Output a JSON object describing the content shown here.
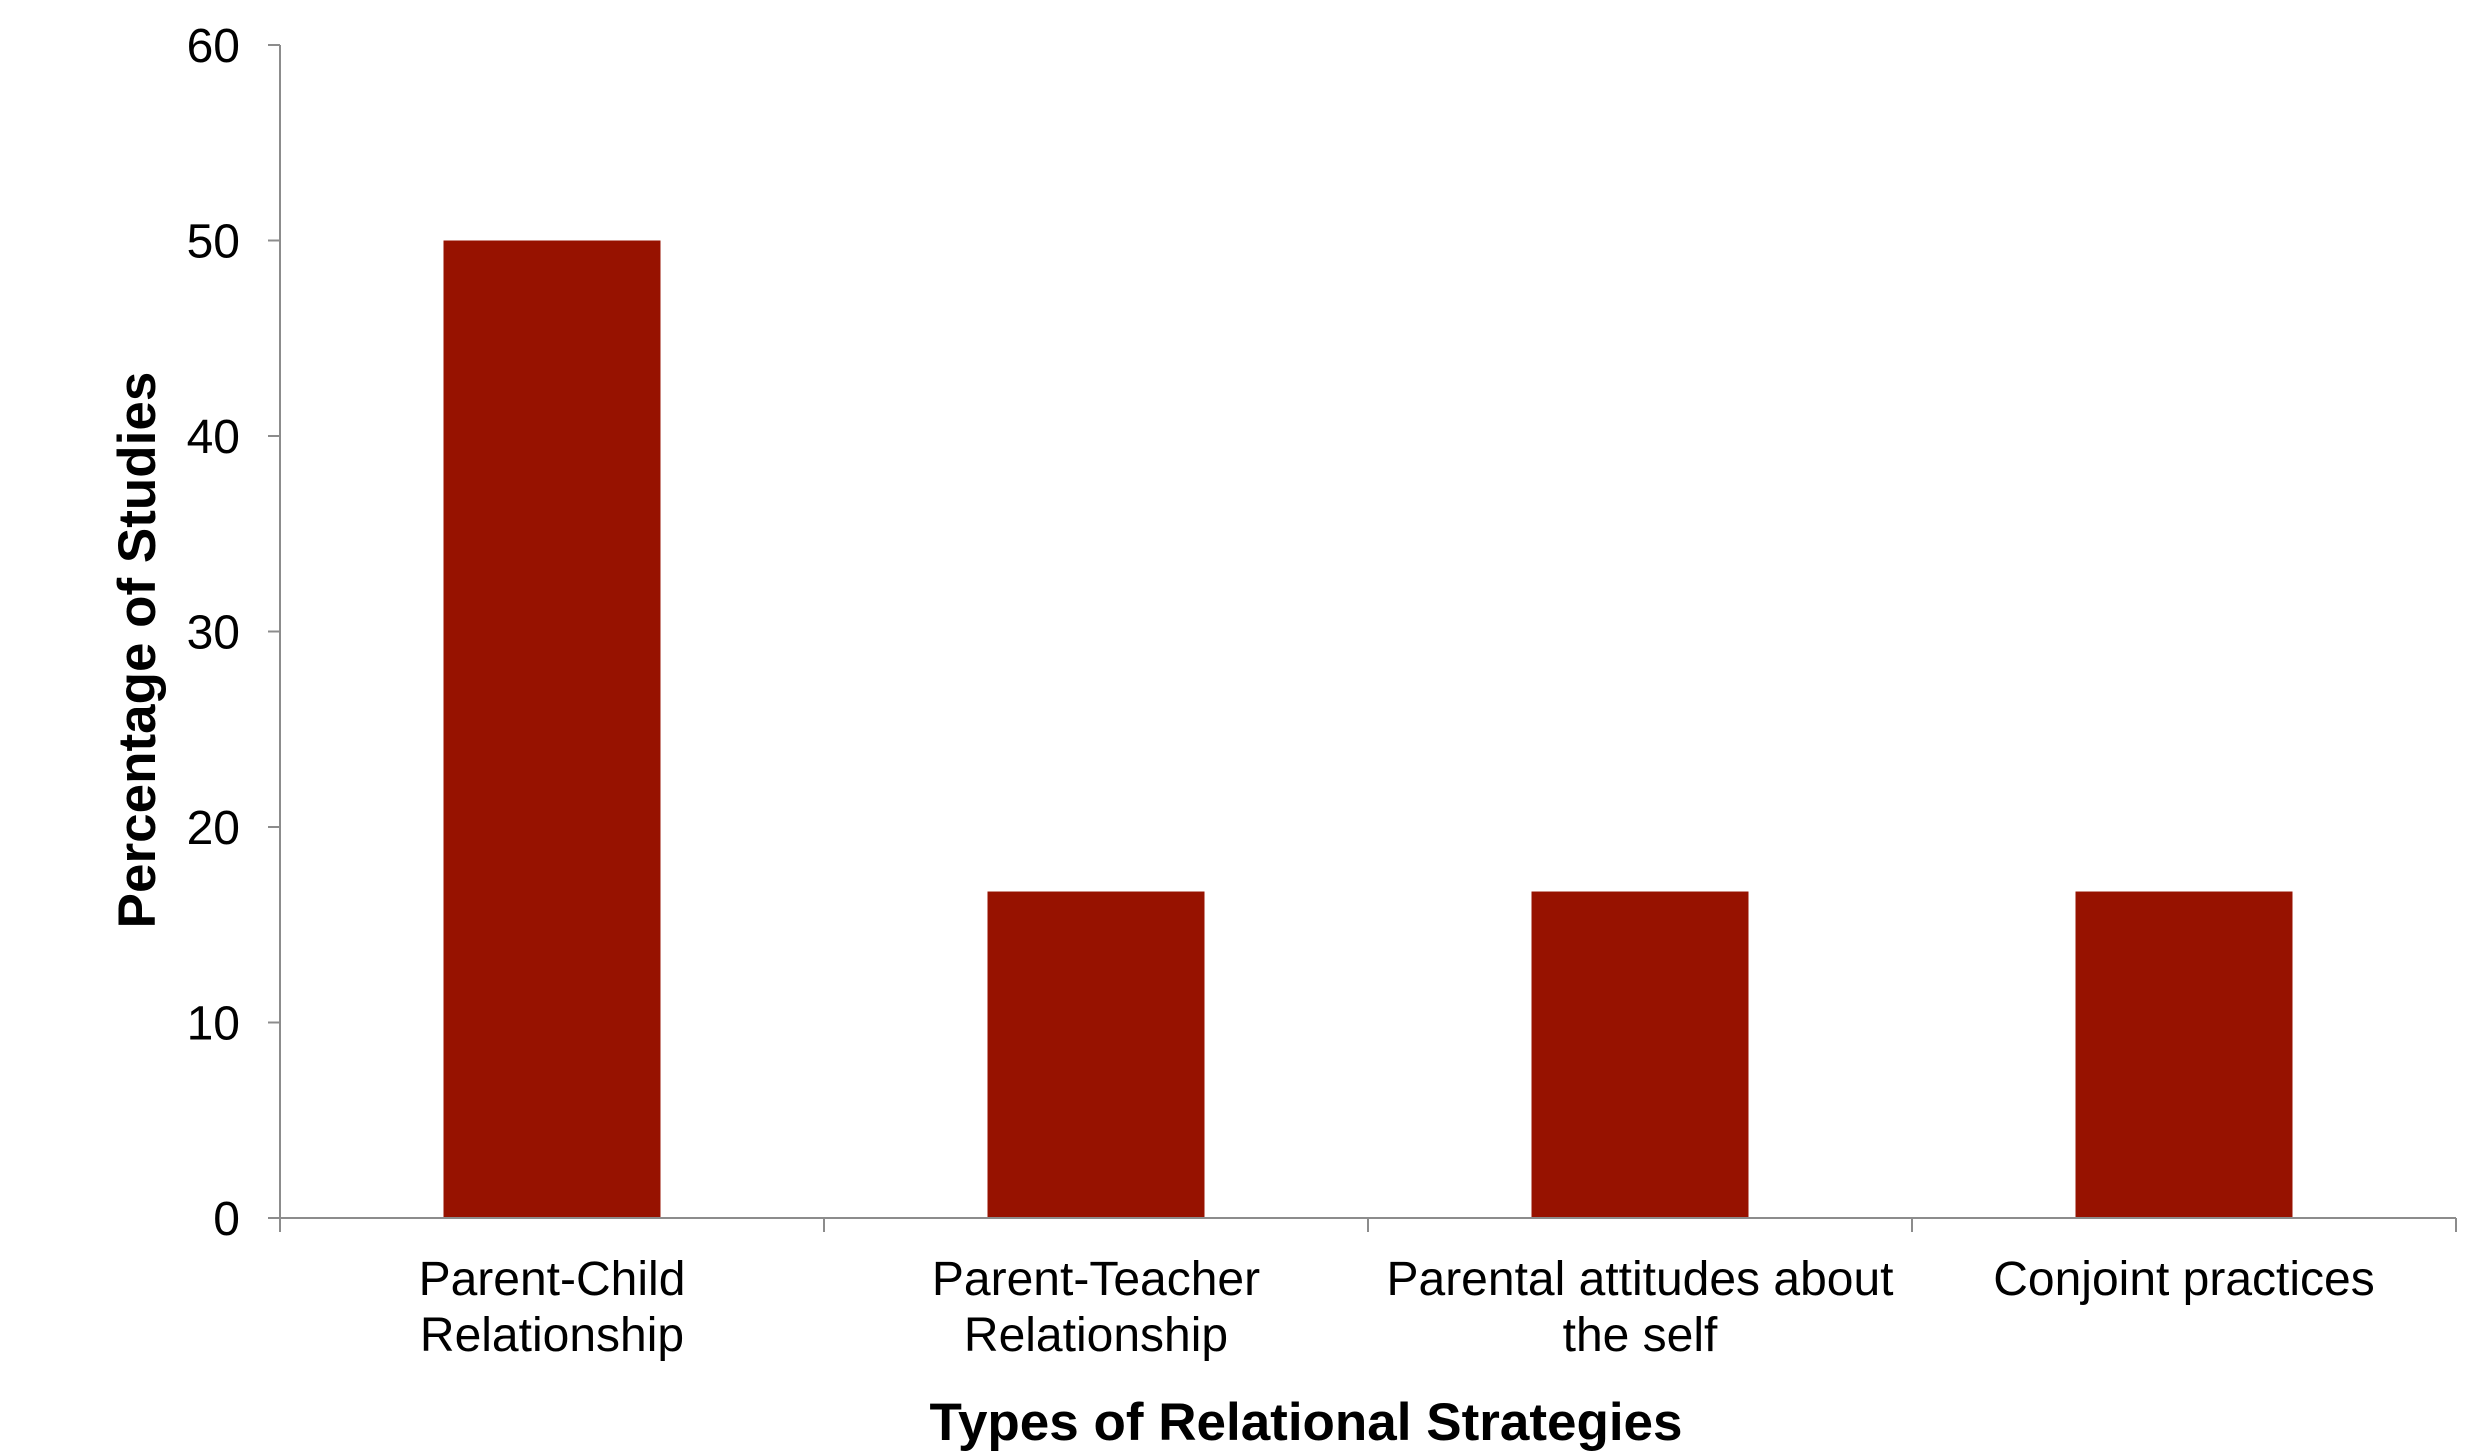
{
  "chart_data": {
    "type": "bar",
    "title": "",
    "xlabel": "Types of Relational Strategies",
    "ylabel": "Percentage of Studies",
    "categories": [
      [
        "Parent-Child",
        "Relationship"
      ],
      [
        "Parent-Teacher",
        "Relationship"
      ],
      [
        "Parental attitudes about",
        "the self"
      ],
      [
        "Conjoint practices"
      ]
    ],
    "series": [
      {
        "values": [
          50,
          16.7,
          16.7,
          16.7
        ],
        "color": "#971200"
      }
    ],
    "ylim": [
      0,
      60
    ],
    "yticks": [
      0,
      10,
      20,
      30,
      40,
      50,
      60
    ],
    "grid": false,
    "legend": "none"
  }
}
